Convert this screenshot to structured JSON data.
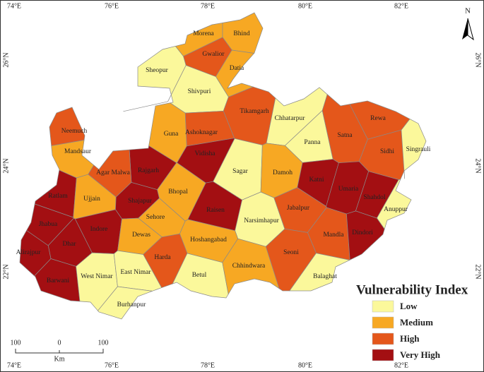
{
  "longitudes": [
    "74°E",
    "76°E",
    "78°E",
    "80°E",
    "82°E"
  ],
  "latitudes": [
    "26°N",
    "24°N",
    "22°N"
  ],
  "north": "N",
  "scale": {
    "left": "100",
    "middle": "0",
    "right": "100",
    "unit": "Km"
  },
  "legend": {
    "title": "Vulnerability Index",
    "classes": [
      {
        "label": "Low",
        "color": "#fbf89b"
      },
      {
        "label": "Medium",
        "color": "#f7a823"
      },
      {
        "label": "High",
        "color": "#e4571b"
      },
      {
        "label": "Very High",
        "color": "#a30f12"
      }
    ]
  },
  "districts": [
    {
      "name": "Morena",
      "class": "Medium"
    },
    {
      "name": "Bhind",
      "class": "Medium"
    },
    {
      "name": "Gwalior",
      "class": "High"
    },
    {
      "name": "Datia",
      "class": "Medium"
    },
    {
      "name": "Sheopur",
      "class": "Low"
    },
    {
      "name": "Shivpuri",
      "class": "Low"
    },
    {
      "name": "Tikamgarh",
      "class": "High"
    },
    {
      "name": "Chhatarpur",
      "class": "Low"
    },
    {
      "name": "Panna",
      "class": "Low"
    },
    {
      "name": "Guna",
      "class": "Medium"
    },
    {
      "name": "Ashoknagar",
      "class": "High"
    },
    {
      "name": "Neemuch",
      "class": "High"
    },
    {
      "name": "Mandsaur",
      "class": "Medium"
    },
    {
      "name": "Rajgarh",
      "class": "Very High"
    },
    {
      "name": "Agar Malwa",
      "class": "High"
    },
    {
      "name": "Vidisha",
      "class": "Very High"
    },
    {
      "name": "Sagar",
      "class": "Low"
    },
    {
      "name": "Damoh",
      "class": "Medium"
    },
    {
      "name": "Satna",
      "class": "High"
    },
    {
      "name": "Rewa",
      "class": "High"
    },
    {
      "name": "Sidhi",
      "class": "High"
    },
    {
      "name": "Singrauli",
      "class": "Low"
    },
    {
      "name": "Katni",
      "class": "Very High"
    },
    {
      "name": "Umaria",
      "class": "Very High"
    },
    {
      "name": "Shahdol",
      "class": "Very High"
    },
    {
      "name": "Anuppur",
      "class": "Low"
    },
    {
      "name": "Ratlam",
      "class": "Very High"
    },
    {
      "name": "Ujjain",
      "class": "Medium"
    },
    {
      "name": "Shajapur",
      "class": "Very High"
    },
    {
      "name": "Bhopal",
      "class": "Medium"
    },
    {
      "name": "Raisen",
      "class": "Very High"
    },
    {
      "name": "Sehore",
      "class": "Medium"
    },
    {
      "name": "Jhabua",
      "class": "Very High"
    },
    {
      "name": "Indore",
      "class": "Very High"
    },
    {
      "name": "Dhar",
      "class": "Very High"
    },
    {
      "name": "Dewas",
      "class": "Medium"
    },
    {
      "name": "Narsimhapur",
      "class": "Low"
    },
    {
      "name": "Jabalpur",
      "class": "High"
    },
    {
      "name": "Mandla",
      "class": "High"
    },
    {
      "name": "Dindori",
      "class": "Very High"
    },
    {
      "name": "Alirajpur",
      "class": "Very High"
    },
    {
      "name": "Hoshangabad",
      "class": "Medium"
    },
    {
      "name": "Harda",
      "class": "High"
    },
    {
      "name": "Seoni",
      "class": "High"
    },
    {
      "name": "Barwani",
      "class": "Very High"
    },
    {
      "name": "West Nimar",
      "class": "Low"
    },
    {
      "name": "East Nimar",
      "class": "Low"
    },
    {
      "name": "Betul",
      "class": "Low"
    },
    {
      "name": "Chhindwara",
      "class": "Medium"
    },
    {
      "name": "Balaghat",
      "class": "Low"
    },
    {
      "name": "Burhanpur",
      "class": "Low"
    }
  ]
}
